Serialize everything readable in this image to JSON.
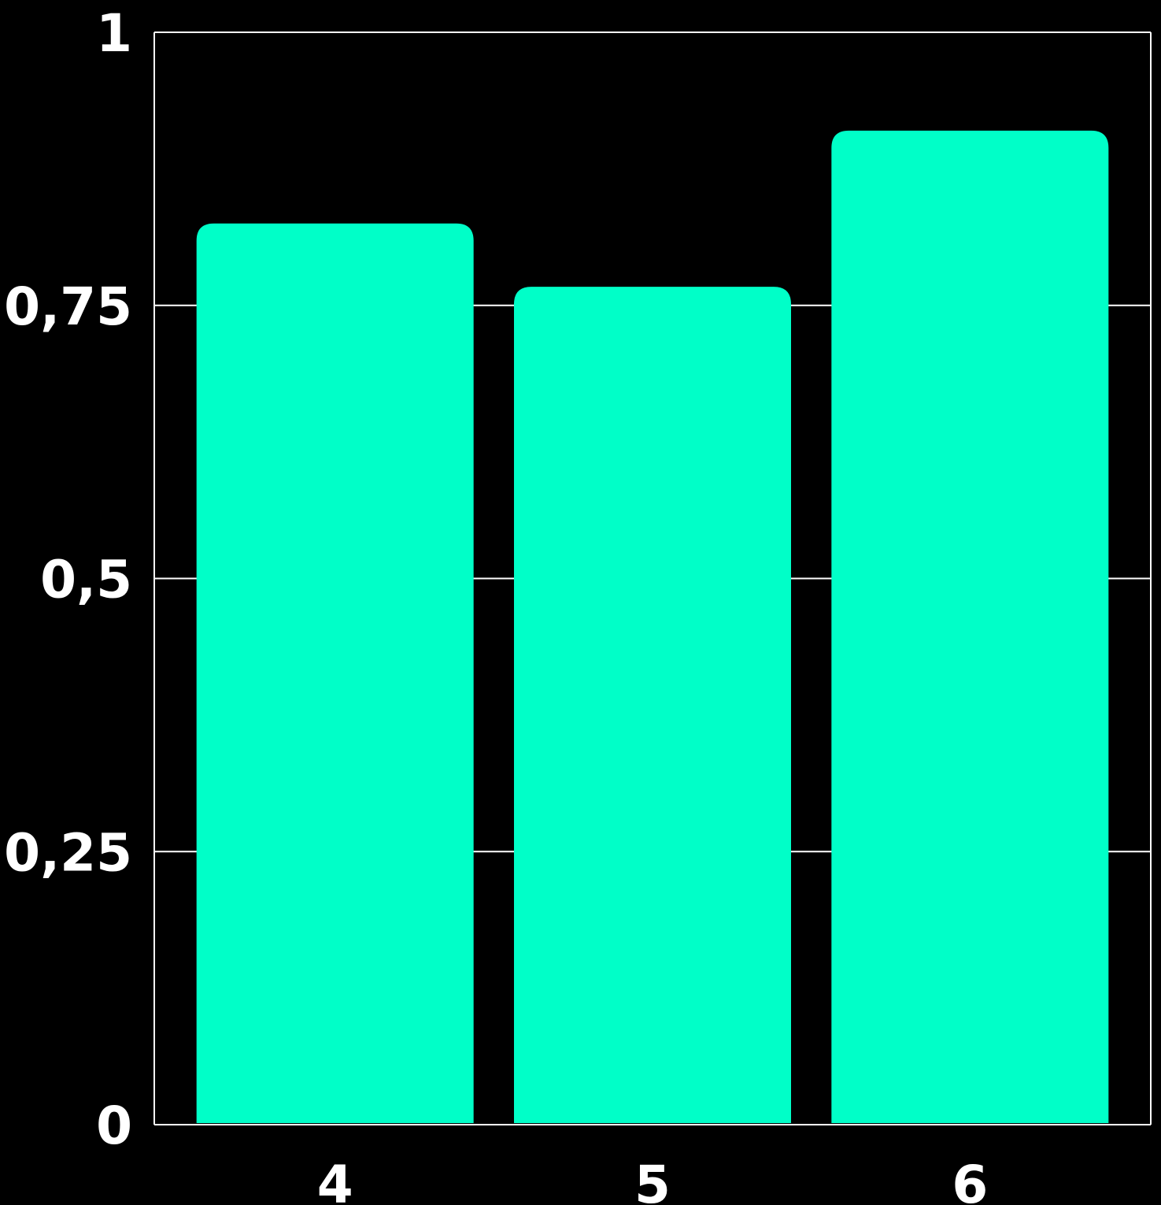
{
  "chart_data": {
    "type": "bar",
    "categories": [
      "4",
      "5",
      "6"
    ],
    "values": [
      0.825,
      0.767,
      0.91
    ],
    "ylim": [
      0,
      1
    ],
    "yticks": [
      0,
      0.25,
      0.5,
      0.75,
      1
    ],
    "ytick_labels": [
      "0",
      "0,25",
      "0,5",
      "0,75",
      "1"
    ],
    "grid": true,
    "legend": "none",
    "title": "",
    "xlabel": "",
    "ylabel": ""
  },
  "colors": {
    "background": "#000000",
    "bar": "#00ffc8",
    "axis": "#ffffff",
    "grid": "#ffffff",
    "text": "#ffffff"
  }
}
